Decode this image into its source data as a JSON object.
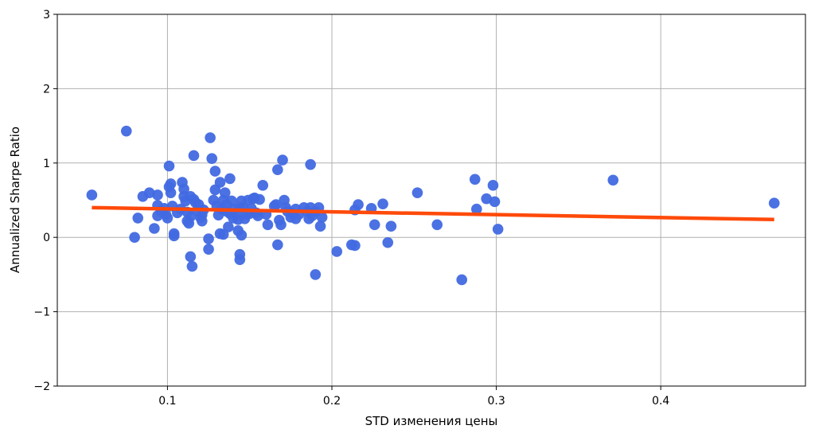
{
  "chart_data": {
    "type": "scatter",
    "title": "",
    "xlabel": "STD изменения цены",
    "ylabel": "Annualized Sharpe Ratio",
    "xlim": [
      0.033,
      0.488
    ],
    "ylim": [
      -2,
      3
    ],
    "grid": true,
    "x_ticks": [
      0.1,
      0.2,
      0.3,
      0.4
    ],
    "x_tick_labels": [
      "0.1",
      "0.2",
      "0.3",
      "0.4"
    ],
    "y_ticks": [
      -2,
      -1,
      0,
      1,
      2,
      3
    ],
    "y_tick_labels": [
      "−2",
      "−1",
      "0",
      "1",
      "2",
      "3"
    ],
    "colors": {
      "points": "#4169e1",
      "trend": "#ff4a0a"
    },
    "series": [
      {
        "type": "scatter",
        "points": [
          [
            0.054,
            0.57
          ],
          [
            0.075,
            1.43
          ],
          [
            0.08,
            0.0
          ],
          [
            0.082,
            0.26
          ],
          [
            0.085,
            0.55
          ],
          [
            0.089,
            0.6
          ],
          [
            0.092,
            0.12
          ],
          [
            0.094,
            0.57
          ],
          [
            0.094,
            0.43
          ],
          [
            0.094,
            0.29
          ],
          [
            0.096,
            0.35
          ],
          [
            0.098,
            0.39
          ],
          [
            0.099,
            0.31
          ],
          [
            0.1,
            0.26
          ],
          [
            0.101,
            0.68
          ],
          [
            0.101,
            0.96
          ],
          [
            0.102,
            0.6
          ],
          [
            0.102,
            0.72
          ],
          [
            0.103,
            0.42
          ],
          [
            0.104,
            0.05
          ],
          [
            0.104,
            0.02
          ],
          [
            0.106,
            0.33
          ],
          [
            0.108,
            0.38
          ],
          [
            0.109,
            0.74
          ],
          [
            0.11,
            0.65
          ],
          [
            0.11,
            0.55
          ],
          [
            0.111,
            0.49
          ],
          [
            0.112,
            0.22
          ],
          [
            0.112,
            0.34
          ],
          [
            0.113,
            0.19
          ],
          [
            0.114,
            0.55
          ],
          [
            0.114,
            0.28
          ],
          [
            0.114,
            -0.26
          ],
          [
            0.115,
            -0.39
          ],
          [
            0.116,
            1.1
          ],
          [
            0.116,
            0.51
          ],
          [
            0.117,
            0.47
          ],
          [
            0.118,
            0.36
          ],
          [
            0.119,
            0.44
          ],
          [
            0.12,
            0.27
          ],
          [
            0.121,
            0.3
          ],
          [
            0.121,
            0.22
          ],
          [
            0.122,
            0.37
          ],
          [
            0.125,
            -0.16
          ],
          [
            0.125,
            -0.02
          ],
          [
            0.126,
            1.34
          ],
          [
            0.127,
            1.06
          ],
          [
            0.128,
            0.5
          ],
          [
            0.129,
            0.64
          ],
          [
            0.129,
            0.89
          ],
          [
            0.13,
            0.42
          ],
          [
            0.131,
            0.3
          ],
          [
            0.132,
            0.74
          ],
          [
            0.132,
            0.05
          ],
          [
            0.133,
            0.38
          ],
          [
            0.134,
            0.04
          ],
          [
            0.134,
            0.5
          ],
          [
            0.135,
            0.6
          ],
          [
            0.136,
            0.44
          ],
          [
            0.136,
            0.35
          ],
          [
            0.137,
            0.14
          ],
          [
            0.138,
            0.32
          ],
          [
            0.138,
            0.79
          ],
          [
            0.139,
            0.49
          ],
          [
            0.14,
            0.26
          ],
          [
            0.141,
            0.38
          ],
          [
            0.142,
            0.3
          ],
          [
            0.143,
            0.09
          ],
          [
            0.143,
            0.24
          ],
          [
            0.144,
            0.4
          ],
          [
            0.144,
            -0.3
          ],
          [
            0.144,
            -0.23
          ],
          [
            0.145,
            0.03
          ],
          [
            0.145,
            0.49
          ],
          [
            0.146,
            0.4
          ],
          [
            0.147,
            0.25
          ],
          [
            0.148,
            0.31
          ],
          [
            0.149,
            0.5
          ],
          [
            0.15,
            0.32
          ],
          [
            0.151,
            0.39
          ],
          [
            0.152,
            0.52
          ],
          [
            0.153,
            0.53
          ],
          [
            0.154,
            0.33
          ],
          [
            0.155,
            0.29
          ],
          [
            0.156,
            0.51
          ],
          [
            0.158,
            0.7
          ],
          [
            0.16,
            0.31
          ],
          [
            0.161,
            0.17
          ],
          [
            0.165,
            0.42
          ],
          [
            0.166,
            0.44
          ],
          [
            0.167,
            -0.1
          ],
          [
            0.167,
            0.91
          ],
          [
            0.168,
            0.23
          ],
          [
            0.169,
            0.17
          ],
          [
            0.17,
            1.04
          ],
          [
            0.171,
            0.5
          ],
          [
            0.172,
            0.4
          ],
          [
            0.173,
            0.35
          ],
          [
            0.175,
            0.27
          ],
          [
            0.176,
            0.32
          ],
          [
            0.178,
            0.38
          ],
          [
            0.178,
            0.25
          ],
          [
            0.18,
            0.31
          ],
          [
            0.183,
            0.4
          ],
          [
            0.185,
            0.35
          ],
          [
            0.186,
            0.25
          ],
          [
            0.187,
            0.4
          ],
          [
            0.187,
            0.98
          ],
          [
            0.188,
            0.29
          ],
          [
            0.19,
            -0.5
          ],
          [
            0.19,
            0.35
          ],
          [
            0.192,
            0.4
          ],
          [
            0.193,
            0.15
          ],
          [
            0.194,
            0.27
          ],
          [
            0.203,
            -0.19
          ],
          [
            0.212,
            -0.1
          ],
          [
            0.214,
            0.37
          ],
          [
            0.214,
            -0.11
          ],
          [
            0.216,
            0.44
          ],
          [
            0.224,
            0.39
          ],
          [
            0.226,
            0.17
          ],
          [
            0.231,
            0.45
          ],
          [
            0.234,
            -0.07
          ],
          [
            0.236,
            0.15
          ],
          [
            0.252,
            0.6
          ],
          [
            0.264,
            0.17
          ],
          [
            0.279,
            -0.57
          ],
          [
            0.287,
            0.78
          ],
          [
            0.288,
            0.38
          ],
          [
            0.294,
            0.52
          ],
          [
            0.298,
            0.7
          ],
          [
            0.299,
            0.48
          ],
          [
            0.301,
            0.11
          ],
          [
            0.371,
            0.77
          ],
          [
            0.469,
            0.46
          ]
        ]
      },
      {
        "type": "line",
        "points": [
          [
            0.054,
            0.4
          ],
          [
            0.469,
            0.24
          ]
        ]
      }
    ]
  }
}
